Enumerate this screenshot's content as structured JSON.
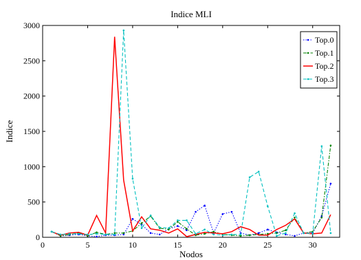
{
  "chart_data": {
    "type": "line",
    "title": "Indice MLI",
    "xlabel": "Nodos",
    "ylabel": "Indice",
    "xlim": [
      0,
      33
    ],
    "ylim": [
      0,
      3000
    ],
    "xticks": [
      0,
      5,
      10,
      15,
      20,
      25,
      30
    ],
    "yticks": [
      0,
      500,
      1000,
      1500,
      2000,
      2500,
      3000
    ],
    "grid": false,
    "legend_position": "top-right",
    "x": [
      1,
      2,
      3,
      4,
      5,
      6,
      7,
      8,
      9,
      10,
      11,
      12,
      13,
      14,
      15,
      16,
      17,
      18,
      19,
      20,
      21,
      22,
      23,
      24,
      25,
      26,
      27,
      28,
      29,
      30,
      31,
      32
    ],
    "series": [
      {
        "name": "Top.0",
        "color": "#0000ff",
        "style": "dotted-marker",
        "values": [
          80,
          20,
          30,
          40,
          20,
          10,
          30,
          30,
          40,
          260,
          180,
          60,
          40,
          120,
          160,
          100,
          360,
          450,
          60,
          330,
          360,
          60,
          30,
          60,
          110,
          70,
          40,
          20,
          60,
          60,
          300,
          760
        ]
      },
      {
        "name": "Top.1",
        "color": "#008000",
        "style": "dashdot-marker",
        "values": [
          80,
          20,
          40,
          60,
          20,
          70,
          40,
          60,
          60,
          90,
          200,
          300,
          130,
          110,
          220,
          120,
          30,
          50,
          80,
          40,
          30,
          20,
          30,
          40,
          50,
          60,
          100,
          280,
          60,
          80,
          280,
          1300
        ]
      },
      {
        "name": "Top.2",
        "color": "#ff0000",
        "style": "solid",
        "values": [
          80,
          30,
          60,
          70,
          30,
          310,
          60,
          2840,
          810,
          90,
          290,
          120,
          100,
          60,
          120,
          10,
          40,
          70,
          60,
          50,
          80,
          150,
          110,
          30,
          30,
          110,
          170,
          260,
          60,
          50,
          60,
          320
        ]
      },
      {
        "name": "Top.3",
        "color": "#00bfbf",
        "style": "dashed-marker",
        "values": [
          80,
          40,
          50,
          50,
          40,
          50,
          40,
          40,
          2930,
          830,
          130,
          310,
          140,
          130,
          240,
          240,
          50,
          110,
          40,
          30,
          40,
          40,
          850,
          930,
          440,
          20,
          60,
          340,
          60,
          50,
          1290,
          60
        ]
      }
    ]
  }
}
